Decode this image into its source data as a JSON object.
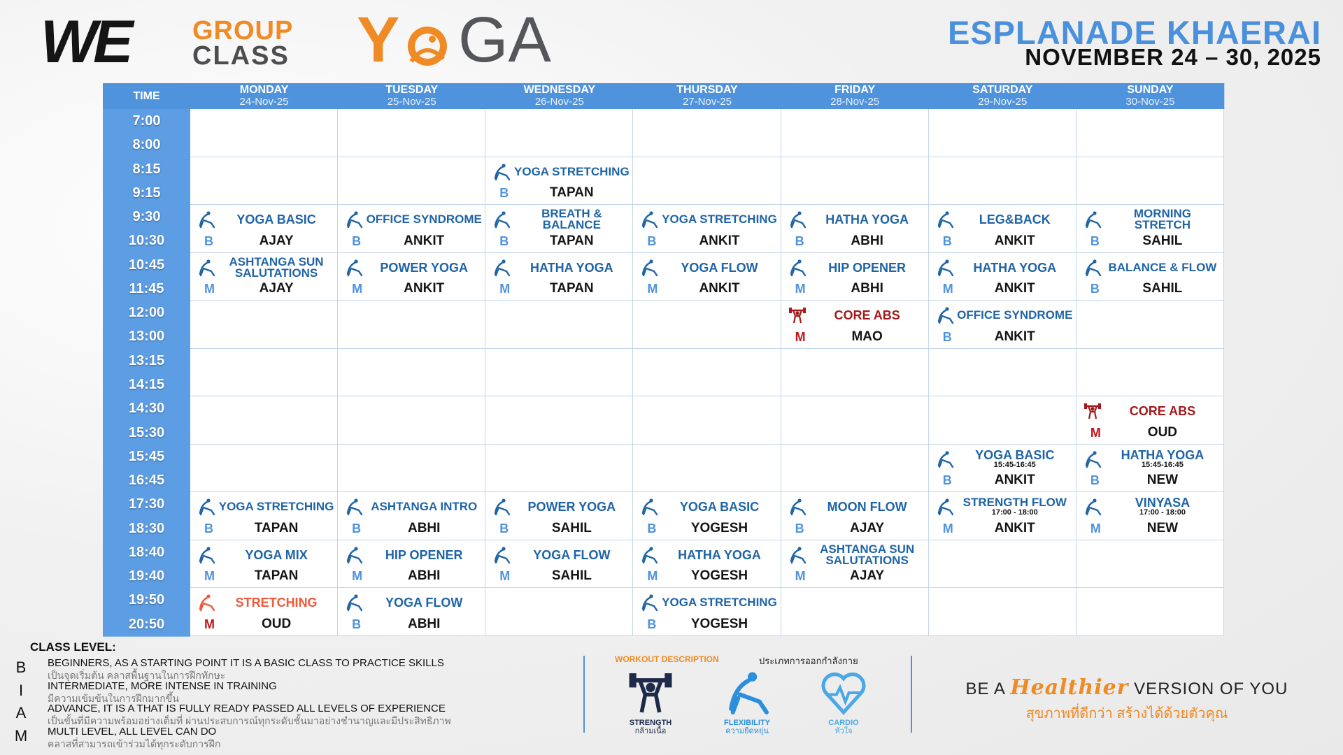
{
  "header": {
    "logo": {
      "we": "WE",
      "group": "GROUP",
      "class": "CLASS",
      "y": "Y",
      "ga": "GA"
    },
    "location": "ESPLANADE KHAERAI",
    "dates": "NOVEMBER 24 – 30, 2025"
  },
  "table": {
    "time_header": "TIME",
    "days": [
      {
        "name": "MONDAY",
        "date": "24-Nov-25"
      },
      {
        "name": "TUESDAY",
        "date": "25-Nov-25"
      },
      {
        "name": "WEDNESDAY",
        "date": "26-Nov-25"
      },
      {
        "name": "THURSDAY",
        "date": "27-Nov-25"
      },
      {
        "name": "FRIDAY",
        "date": "28-Nov-25"
      },
      {
        "name": "SATURDAY",
        "date": "29-Nov-25"
      },
      {
        "name": "SUNDAY",
        "date": "30-Nov-25"
      }
    ],
    "rows": [
      {
        "times": [
          "7:00",
          "8:00"
        ],
        "cells": [
          null,
          null,
          null,
          null,
          null,
          null,
          null
        ]
      },
      {
        "times": [
          "8:15",
          "9:15"
        ],
        "cells": [
          null,
          null,
          {
            "name": "YOGA STRETCHING",
            "kind": "flexibility",
            "level": "B",
            "instructor": "TAPAN"
          },
          null,
          null,
          null,
          null
        ]
      },
      {
        "times": [
          "9:30",
          "10:30"
        ],
        "cells": [
          {
            "name": "YOGA BASIC",
            "kind": "flexibility",
            "level": "B",
            "instructor": "AJAY"
          },
          {
            "name": "OFFICE SYNDROME",
            "kind": "flexibility",
            "level": "B",
            "instructor": "ANKIT"
          },
          {
            "name": "BREATH & BALANCE",
            "kind": "flexibility",
            "level": "B",
            "instructor": "TAPAN"
          },
          {
            "name": "YOGA STRETCHING",
            "kind": "flexibility",
            "level": "B",
            "instructor": "ANKIT"
          },
          {
            "name": "HATHA YOGA",
            "kind": "flexibility",
            "level": "B",
            "instructor": "ABHI"
          },
          {
            "name": "LEG&BACK",
            "kind": "flexibility",
            "level": "B",
            "instructor": "ANKIT"
          },
          {
            "name": "MORNING STRETCH",
            "kind": "flexibility",
            "level": "B",
            "instructor": "SAHIL"
          }
        ]
      },
      {
        "times": [
          "10:45",
          "11:45"
        ],
        "cells": [
          {
            "name": "ASHTANGA SUN SALUTATIONS",
            "kind": "flexibility",
            "level": "M",
            "instructor": "AJAY"
          },
          {
            "name": "POWER YOGA",
            "kind": "flexibility",
            "level": "M",
            "instructor": "ANKIT"
          },
          {
            "name": "HATHA YOGA",
            "kind": "flexibility",
            "level": "M",
            "instructor": "TAPAN"
          },
          {
            "name": "YOGA FLOW",
            "kind": "flexibility",
            "level": "M",
            "instructor": "ANKIT"
          },
          {
            "name": "HIP OPENER",
            "kind": "flexibility",
            "level": "M",
            "instructor": "ABHI"
          },
          {
            "name": "HATHA YOGA",
            "kind": "flexibility",
            "level": "M",
            "instructor": "ANKIT"
          },
          {
            "name": "BALANCE & FLOW",
            "kind": "flexibility",
            "level": "B",
            "instructor": "SAHIL"
          }
        ]
      },
      {
        "times": [
          "12:00",
          "13:00"
        ],
        "cells": [
          null,
          null,
          null,
          null,
          {
            "name": "CORE ABS",
            "kind": "strength",
            "color": "#a3191c",
            "level": "M",
            "instructor": "MAO"
          },
          {
            "name": "OFFICE SYNDROME",
            "kind": "flexibility",
            "level": "B",
            "instructor": "ANKIT"
          },
          null
        ]
      },
      {
        "times": [
          "13:15",
          "14:15"
        ],
        "cells": [
          null,
          null,
          null,
          null,
          null,
          null,
          null
        ]
      },
      {
        "times": [
          "14:30",
          "15:30"
        ],
        "cells": [
          null,
          null,
          null,
          null,
          null,
          null,
          {
            "name": "CORE ABS",
            "kind": "strength",
            "color": "#a3191c",
            "level": "M",
            "instructor": "OUD"
          }
        ]
      },
      {
        "times": [
          "15:45",
          "16:45"
        ],
        "cells": [
          null,
          null,
          null,
          null,
          null,
          {
            "name": "YOGA BASIC",
            "time": "15:45-16:45",
            "kind": "flexibility",
            "level": "B",
            "instructor": "ANKIT"
          },
          {
            "name": "HATHA YOGA",
            "time": "15:45-16:45",
            "kind": "flexibility",
            "level": "B",
            "instructor": "NEW"
          }
        ]
      },
      {
        "times": [
          "17:30",
          "18:30"
        ],
        "cells": [
          {
            "name": "YOGA STRETCHING",
            "kind": "flexibility",
            "level": "B",
            "instructor": "TAPAN"
          },
          {
            "name": "ASHTANGA INTRO",
            "kind": "flexibility",
            "level": "B",
            "instructor": "ABHI"
          },
          {
            "name": "POWER YOGA",
            "kind": "flexibility",
            "level": "B",
            "instructor": "SAHIL"
          },
          {
            "name": "YOGA BASIC",
            "kind": "flexibility",
            "level": "B",
            "instructor": "YOGESH"
          },
          {
            "name": "MOON FLOW",
            "kind": "flexibility",
            "level": "B",
            "instructor": "AJAY"
          },
          {
            "name": "STRENGTH FLOW",
            "time": "17:00 - 18:00",
            "kind": "flexibility",
            "level": "M",
            "instructor": "ANKIT"
          },
          {
            "name": "VINYASA",
            "time": "17:00 - 18:00",
            "kind": "flexibility",
            "level": "M",
            "instructor": "NEW"
          }
        ]
      },
      {
        "times": [
          "18:40",
          "19:40"
        ],
        "cells": [
          {
            "name": "YOGA MIX",
            "kind": "flexibility",
            "level": "M",
            "instructor": "TAPAN"
          },
          {
            "name": "HIP OPENER",
            "kind": "flexibility",
            "level": "M",
            "instructor": "ABHI"
          },
          {
            "name": "YOGA FLOW",
            "kind": "flexibility",
            "level": "M",
            "instructor": "SAHIL"
          },
          {
            "name": "HATHA YOGA",
            "kind": "flexibility",
            "level": "M",
            "instructor": "YOGESH"
          },
          {
            "name": "ASHTANGA SUN SALUTATIONS",
            "kind": "flexibility",
            "level": "M",
            "instructor": "AJAY"
          },
          null,
          null
        ]
      },
      {
        "times": [
          "19:50",
          "20:50"
        ],
        "cells": [
          {
            "name": "STRETCHING",
            "kind": "flexibility",
            "color": "#ef5a3c",
            "level": "M",
            "instructor": "OUD"
          },
          {
            "name": "YOGA FLOW",
            "kind": "flexibility",
            "level": "B",
            "instructor": "ABHI"
          },
          null,
          {
            "name": "YOGA STRETCHING",
            "kind": "flexibility",
            "level": "B",
            "instructor": "YOGESH"
          },
          null,
          null,
          null
        ]
      }
    ]
  },
  "footer": {
    "class_level_title": "CLASS LEVEL:",
    "levels": [
      {
        "letter": "B",
        "en": "BEGINNERS, AS A STARTING POINT IT IS A BASIC CLASS TO PRACTICE SKILLS",
        "th": "เป็นจุดเริ่มต้น คลาสพื้นฐานในการฝึกทักษะ"
      },
      {
        "letter": "I",
        "en": "INTERMEDIATE, MORE INTENSE IN TRAINING",
        "th": "มีความเข้มข้นในการฝึกมากขึ้น"
      },
      {
        "letter": "A",
        "en": "ADVANCE, IT IS A THAT IS FULLY READY PASSED ALL LEVELS OF EXPERIENCE",
        "th": "เป็นขั้นที่มีความพร้อมอย่างเต็มที่ ผ่านประสบการณ์ทุกระดับชั้นมาอย่างชำนาญและมีประสิทธิภาพ"
      },
      {
        "letter": "M",
        "en": "MULTI LEVEL, ALL LEVEL CAN DO",
        "th": "คลาสที่สามารถเข้าร่วมได้ทุกระดับการฝึก"
      }
    ],
    "workout": {
      "title": "WORKOUT DESCRIPTION",
      "title_th": "ประเภทการออกกำลังกาย",
      "items": [
        {
          "kind": "strength",
          "en": "STRENGTH",
          "th": "กล้ามเนื้อ"
        },
        {
          "kind": "flexibility",
          "en": "FLEXIBILITY",
          "th": "ความยืดหยุ่น"
        },
        {
          "kind": "cardio",
          "en": "CARDIO",
          "th": "หัวใจ"
        }
      ]
    },
    "slogan": {
      "pre": "BE A",
      "accent": "Healthier",
      "post": "VERSION OF YOU",
      "th": "สุขภาพที่ดีกว่า สร้างได้ด้วยตัวคุณ"
    }
  }
}
